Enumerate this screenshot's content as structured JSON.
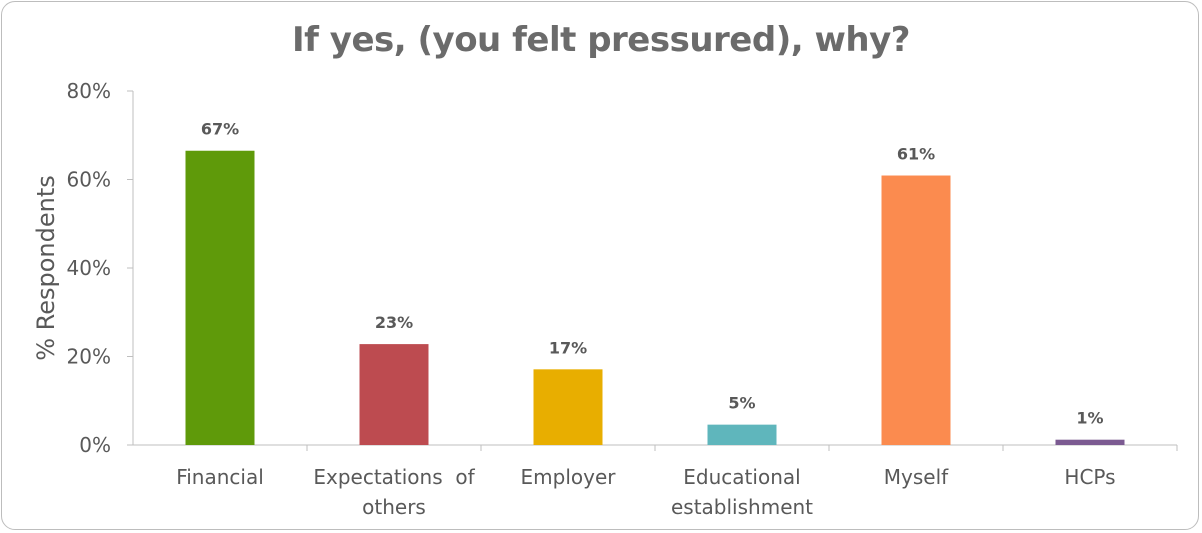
{
  "chart_data": {
    "type": "bar",
    "title": "If yes, (you felt pressured), why?",
    "ylabel": "% Respondents",
    "xlabel": "",
    "ylim": [
      0,
      80
    ],
    "yticks": [
      "0%",
      "20%",
      "40%",
      "60%",
      "80%"
    ],
    "ytick_values": [
      0,
      20,
      40,
      60,
      80
    ],
    "grid": false,
    "categories": [
      [
        "Financial"
      ],
      [
        "Expectations  of",
        "others"
      ],
      [
        "Employer"
      ],
      [
        "Educational",
        "establishment"
      ],
      [
        "Myself"
      ],
      [
        "HCPs"
      ]
    ],
    "values": [
      67,
      23,
      17,
      5,
      61,
      1
    ],
    "plot_values": [
      66.5,
      22.8,
      17.1,
      4.6,
      60.9,
      1.2
    ],
    "data_labels": [
      "67%",
      "23%",
      "17%",
      "5%",
      "61%",
      "1%"
    ],
    "colors": [
      "#5f9a0a",
      "#bd4b50",
      "#e8ae00",
      "#5fb6bc",
      "#fb8b4f",
      "#7b5a91"
    ]
  }
}
